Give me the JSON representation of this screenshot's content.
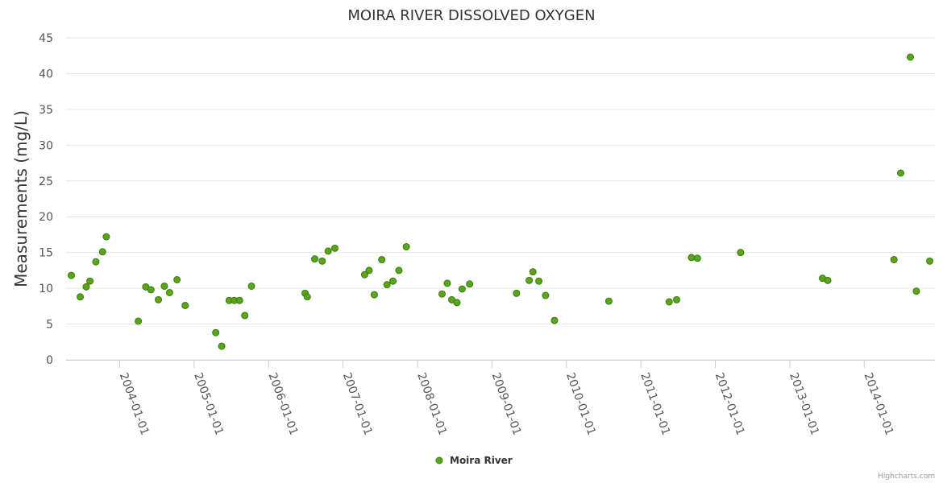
{
  "chart_data": {
    "type": "scatter",
    "title": "MOIRA RIVER DISSOLVED OXYGEN",
    "ylabel": "Measurements (mg/L)",
    "xlabel": "",
    "ylim": [
      0,
      45
    ],
    "yticks": [
      "0",
      "5",
      "10",
      "15",
      "20",
      "25",
      "30",
      "35",
      "40",
      "45"
    ],
    "xticks": [
      {
        "label": "2004-01-01",
        "t": 2004.0
      },
      {
        "label": "2005-01-01",
        "t": 2005.0
      },
      {
        "label": "2006-01-01",
        "t": 2006.0
      },
      {
        "label": "2007-01-01",
        "t": 2007.0
      },
      {
        "label": "2008-01-01",
        "t": 2008.0
      },
      {
        "label": "2009-01-01",
        "t": 2009.0
      },
      {
        "label": "2010-01-01",
        "t": 2010.0
      },
      {
        "label": "2011-01-01",
        "t": 2011.0
      },
      {
        "label": "2012-01-01",
        "t": 2012.0
      },
      {
        "label": "2013-01-01",
        "t": 2013.0
      },
      {
        "label": "2014-01-01",
        "t": 2014.0
      }
    ],
    "xlim": [
      2003.28,
      2014.95
    ],
    "series": [
      {
        "name": "Moira River",
        "color": "#5aa51b",
        "points": [
          [
            2003.35,
            11.8
          ],
          [
            2003.47,
            8.8
          ],
          [
            2003.55,
            10.2
          ],
          [
            2003.6,
            11.0
          ],
          [
            2003.68,
            13.7
          ],
          [
            2003.77,
            15.1
          ],
          [
            2003.82,
            17.2
          ],
          [
            2004.25,
            5.4
          ],
          [
            2004.35,
            10.2
          ],
          [
            2004.42,
            9.8
          ],
          [
            2004.52,
            8.4
          ],
          [
            2004.6,
            10.3
          ],
          [
            2004.67,
            9.4
          ],
          [
            2004.77,
            11.2
          ],
          [
            2004.88,
            7.6
          ],
          [
            2005.29,
            3.8
          ],
          [
            2005.37,
            1.9
          ],
          [
            2005.47,
            8.3
          ],
          [
            2005.54,
            8.3
          ],
          [
            2005.61,
            8.3
          ],
          [
            2005.68,
            6.2
          ],
          [
            2005.77,
            10.3
          ],
          [
            2006.49,
            9.3
          ],
          [
            2006.52,
            8.8
          ],
          [
            2006.62,
            14.1
          ],
          [
            2006.72,
            13.8
          ],
          [
            2006.8,
            15.2
          ],
          [
            2006.89,
            15.6
          ],
          [
            2007.29,
            11.9
          ],
          [
            2007.35,
            12.5
          ],
          [
            2007.42,
            9.1
          ],
          [
            2007.52,
            14.0
          ],
          [
            2007.59,
            10.5
          ],
          [
            2007.67,
            11.0
          ],
          [
            2007.75,
            12.5
          ],
          [
            2007.85,
            15.8
          ],
          [
            2008.33,
            9.2
          ],
          [
            2008.4,
            10.7
          ],
          [
            2008.46,
            8.4
          ],
          [
            2008.53,
            8.0
          ],
          [
            2008.6,
            9.9
          ],
          [
            2008.7,
            10.6
          ],
          [
            2009.33,
            9.3
          ],
          [
            2009.5,
            11.1
          ],
          [
            2009.55,
            12.3
          ],
          [
            2009.63,
            11.0
          ],
          [
            2009.72,
            9.0
          ],
          [
            2009.84,
            5.5
          ],
          [
            2010.57,
            8.2
          ],
          [
            2011.38,
            8.1
          ],
          [
            2011.48,
            8.4
          ],
          [
            2011.68,
            14.3
          ],
          [
            2011.76,
            14.2
          ],
          [
            2012.34,
            15.0
          ],
          [
            2013.44,
            11.4
          ],
          [
            2013.51,
            11.1
          ],
          [
            2014.4,
            14.0
          ],
          [
            2014.49,
            26.1
          ],
          [
            2014.62,
            42.3
          ],
          [
            2014.7,
            9.6
          ],
          [
            2014.88,
            13.8
          ]
        ]
      }
    ],
    "legend": "bottom-center"
  },
  "credit": "Highcharts.com"
}
